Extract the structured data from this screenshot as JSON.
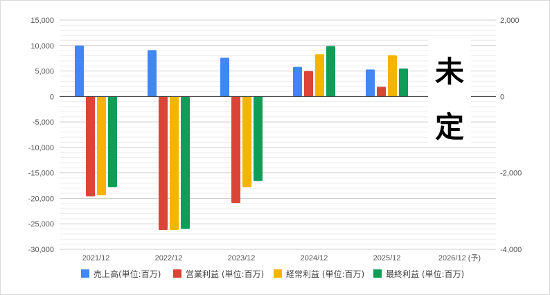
{
  "chart_data": {
    "type": "bar",
    "categories": [
      "2021/12",
      "2022/12",
      "2023/12",
      "2024/12",
      "2025/12",
      "2026/12 (予)"
    ],
    "series": [
      {
        "name": "売上高(単位:百万)",
        "color": "#4285f4",
        "values": [
          10000,
          9100,
          7600,
          5800,
          5300,
          null
        ]
      },
      {
        "name": "営業利益 (単位:百万)",
        "color": "#db4437",
        "values": [
          -19600,
          -26200,
          -20900,
          5000,
          1900,
          null
        ]
      },
      {
        "name": "経常利益 (単位:百万)",
        "color": "#f4b400",
        "values": [
          -19400,
          -26200,
          -17800,
          8300,
          8100,
          null
        ]
      },
      {
        "name": "最終利益 (単位:百万)",
        "color": "#0f9d58",
        "values": [
          -17800,
          -26000,
          -16600,
          9900,
          5500,
          null
        ]
      }
    ],
    "ylim": [
      -30000,
      15000
    ],
    "yticks": [
      "15,000",
      "10,000",
      "5,000",
      "0",
      "-5,000",
      "-10,000",
      "-15,000",
      "-20,000",
      "-25,000",
      "-30,000"
    ],
    "ylim_right": [
      -4000,
      2000
    ],
    "yticks_right": [
      "2,000",
      "0",
      "-2,000",
      "-4,000"
    ],
    "grid": true,
    "legend": "bottom",
    "annotation": [
      "未",
      "定"
    ]
  }
}
